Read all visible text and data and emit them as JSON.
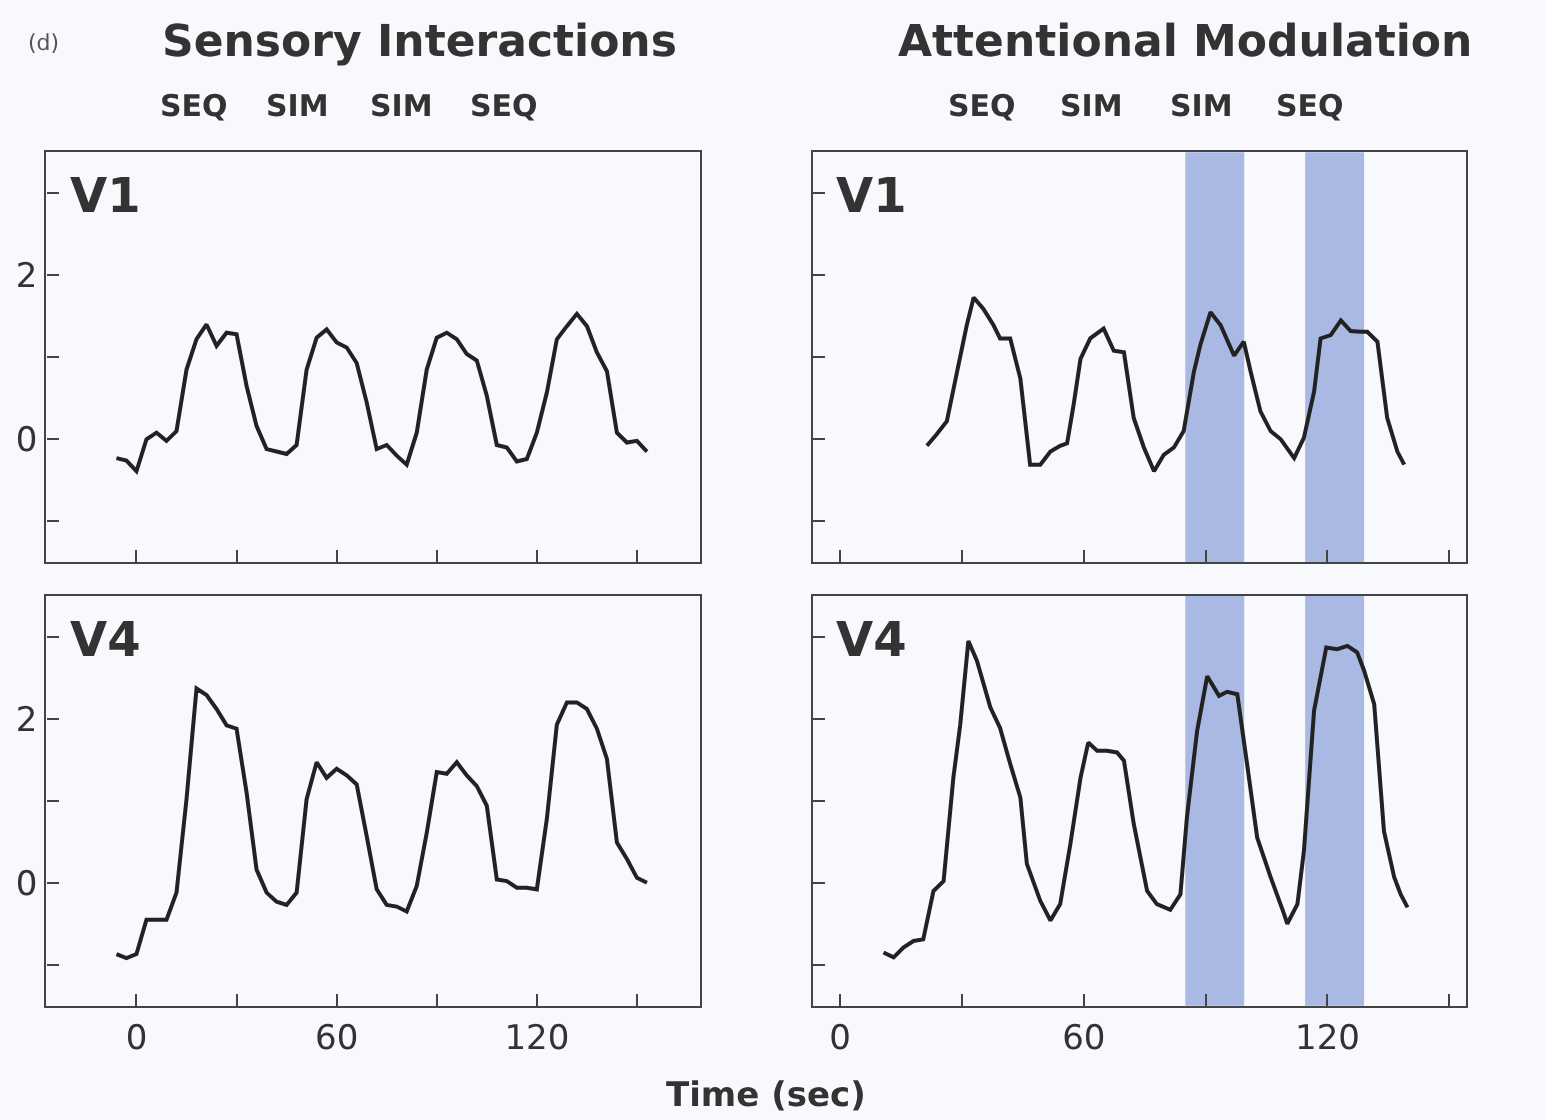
{
  "chart_data": [
    {
      "type": "line",
      "title": "Sensory Interactions",
      "annotations": [
        "V1",
        "SEQ",
        "SIM",
        "SIM",
        "SEQ",
        "(d)"
      ],
      "x": [
        -6,
        -3,
        0,
        3,
        6,
        9,
        12,
        15,
        18,
        21,
        24,
        27,
        30,
        33,
        36,
        39,
        42,
        45,
        48,
        51,
        54,
        57,
        60,
        63,
        66,
        69,
        72,
        75,
        78,
        81,
        84,
        87,
        90,
        93,
        96,
        99,
        102,
        105,
        108,
        111,
        114,
        117,
        120,
        123,
        126,
        129,
        132,
        135,
        138,
        141,
        144,
        147,
        150,
        153
      ],
      "series": [
        {
          "color": "#222222",
          "values": [
            -0.23,
            -0.26,
            -0.39,
            0,
            0.08,
            -0.02,
            0.1,
            0.85,
            1.22,
            1.4,
            1.14,
            1.3,
            1.28,
            0.65,
            0.16,
            -0.12,
            -0.15,
            -0.18,
            -0.07,
            0.85,
            1.24,
            1.34,
            1.18,
            1.12,
            0.93,
            0.45,
            -0.12,
            -0.07,
            -0.2,
            -0.31,
            0.08,
            0.85,
            1.24,
            1.3,
            1.22,
            1.04,
            0.96,
            0.53,
            -0.07,
            -0.1,
            -0.27,
            -0.24,
            0.08,
            0.57,
            1.22,
            1.38,
            1.53,
            1.38,
            1.06,
            0.83,
            0.08,
            -0.04,
            -0.02,
            -0.15
          ]
        }
      ],
      "xlim": [
        -27,
        169
      ],
      "xticks": [
        0,
        {
          "value": 30,
          "label": null
        },
        60,
        {
          "value": 90,
          "label": null
        },
        120,
        {
          "value": 150,
          "label": null
        }
      ],
      "ylim": [
        -1.5,
        3.5
      ],
      "yticks": [
        {
          "value": -1,
          "label": null
        },
        0,
        {
          "value": 1,
          "label": null
        },
        2,
        {
          "value": 3,
          "label": null
        }
      ],
      "tick_labels": "y"
    },
    {
      "type": "line",
      "title": "Attentional Modulation",
      "annotations": [
        "V1",
        "SEQ",
        "SIM",
        "SIM",
        "SEQ"
      ],
      "x": [
        21.4,
        23.8,
        26.3,
        28.8,
        31.2,
        32.9,
        35.3,
        37.8,
        39.4,
        41.9,
        44.4,
        46.8,
        49.3,
        51.8,
        54.2,
        55.9,
        57.5,
        59.2,
        61.6,
        64.9,
        67.4,
        69.9,
        72.3,
        74.8,
        77.3,
        79.7,
        82.2,
        84.6,
        87.1,
        88.7,
        91.2,
        93.7,
        97,
        99.4,
        101.1,
        103.5,
        106,
        108.5,
        111.8,
        114.2,
        116.7,
        118.3,
        120.8,
        123.3,
        125.7,
        128.2,
        129.8,
        132.3,
        134.7,
        137.2,
        138.9
      ],
      "series": [
        {
          "color": "#222222",
          "values": [
            -0.08,
            0.06,
            0.22,
            0.82,
            1.39,
            1.73,
            1.59,
            1.39,
            1.23,
            1.23,
            0.74,
            -0.31,
            -0.31,
            -0.15,
            -0.08,
            -0.05,
            0.42,
            0.98,
            1.23,
            1.35,
            1.08,
            1.06,
            0.26,
            -0.1,
            -0.39,
            -0.19,
            -0.1,
            0.1,
            0.82,
            1.15,
            1.55,
            1.39,
            1.02,
            1.19,
            0.82,
            0.34,
            0.1,
            0,
            -0.23,
            0.02,
            0.58,
            1.23,
            1.27,
            1.45,
            1.32,
            1.31,
            1.31,
            1.19,
            0.26,
            -0.15,
            -0.31
          ]
        }
      ],
      "bands": [
        {
          "axis": "x",
          "from": 85,
          "to": 99.5,
          "color": "#aab9e3"
        },
        {
          "axis": "x",
          "from": 114.5,
          "to": 129,
          "color": "#aab9e3"
        }
      ],
      "xlim": [
        -6.6,
        154
      ],
      "xticks": [
        0,
        {
          "value": 30,
          "label": null
        },
        60,
        {
          "value": 90,
          "label": null
        },
        120,
        {
          "value": 150,
          "label": null
        }
      ],
      "ylim": [
        -1.5,
        3.5
      ],
      "yticks": [
        {
          "value": -1,
          "label": null
        },
        {
          "value": 0,
          "label": null
        },
        {
          "value": 1,
          "label": null
        },
        {
          "value": 2,
          "label": null
        },
        {
          "value": 3,
          "label": null
        }
      ],
      "tick_labels": false
    },
    {
      "type": "line",
      "annotations": [
        "V4"
      ],
      "x": [
        -6,
        -3,
        0,
        3,
        6,
        9,
        12,
        15,
        18,
        21,
        24,
        27,
        30,
        33,
        36,
        39,
        42,
        45,
        48,
        51,
        54,
        57,
        60,
        63,
        66,
        69,
        72,
        75,
        78,
        81,
        84,
        87,
        90,
        93,
        96,
        99,
        102,
        105,
        108,
        111,
        114,
        117,
        120,
        123,
        126,
        129,
        132,
        135,
        138,
        141,
        144,
        147,
        150,
        153
      ],
      "series": [
        {
          "color": "#222222",
          "values": [
            -0.87,
            -0.92,
            -0.87,
            -0.45,
            -0.45,
            -0.45,
            -0.12,
            1.02,
            2.37,
            2.29,
            2.12,
            1.92,
            1.88,
            1.1,
            0.16,
            -0.12,
            -0.23,
            -0.27,
            -0.12,
            1.02,
            1.47,
            1.28,
            1.39,
            1.31,
            1.2,
            0.57,
            -0.08,
            -0.27,
            -0.29,
            -0.35,
            -0.04,
            0.61,
            1.35,
            1.33,
            1.47,
            1.31,
            1.18,
            0.94,
            0.04,
            0.02,
            -0.06,
            -0.06,
            -0.08,
            0.78,
            1.93,
            2.2,
            2.2,
            2.12,
            1.88,
            1.51,
            0.49,
            0.29,
            0.06,
            0
          ]
        }
      ],
      "xlim": [
        -27,
        169
      ],
      "xticks": [
        0,
        {
          "value": 30,
          "label": null
        },
        60,
        {
          "value": 90,
          "label": null
        },
        120,
        {
          "value": 150,
          "label": null
        }
      ],
      "ylim": [
        -1.5,
        3.5
      ],
      "yticks": [
        {
          "value": -1,
          "label": null
        },
        0,
        {
          "value": 1,
          "label": null
        },
        2,
        {
          "value": 3,
          "label": null
        }
      ]
    },
    {
      "type": "line",
      "xlabel": "Time (sec)",
      "annotations": [
        "V4"
      ],
      "x": [
        10.7,
        13.2,
        15.6,
        18.1,
        20.5,
        23,
        25.5,
        27.9,
        29.6,
        31.6,
        33.7,
        37,
        39.4,
        41.9,
        44.4,
        46,
        49.3,
        51.8,
        54.2,
        56.7,
        59.2,
        61.1,
        63.3,
        65.7,
        68.2,
        69.9,
        72.3,
        75.6,
        78,
        81.3,
        83.8,
        85.4,
        87.9,
        90.4,
        93.3,
        95.3,
        97.8,
        100.2,
        102.7,
        106,
        109.3,
        110.1,
        112.6,
        114.2,
        116.7,
        119.7,
        122.4,
        124.9,
        127.3,
        129,
        131.5,
        133.9,
        136.4,
        138,
        139.7
      ],
      "series": [
        {
          "color": "#222222",
          "values": [
            -0.85,
            -0.91,
            -0.79,
            -0.71,
            -0.69,
            -0.1,
            0.02,
            1.28,
            1.93,
            2.95,
            2.71,
            2.14,
            1.89,
            1.45,
            1.04,
            0.23,
            -0.22,
            -0.46,
            -0.26,
            0.47,
            1.28,
            1.71,
            1.61,
            1.61,
            1.59,
            1.49,
            0.72,
            -0.1,
            -0.26,
            -0.33,
            -0.14,
            0.8,
            1.85,
            2.52,
            2.28,
            2.33,
            2.3,
            1.45,
            0.55,
            0.07,
            -0.38,
            -0.5,
            -0.26,
            0.39,
            2.1,
            2.87,
            2.85,
            2.89,
            2.81,
            2.59,
            2.18,
            0.63,
            0.07,
            -0.14,
            -0.3
          ]
        }
      ],
      "bands": [
        {
          "axis": "x",
          "from": 85,
          "to": 99.5,
          "color": "#aab9e3"
        },
        {
          "axis": "x",
          "from": 114.5,
          "to": 129,
          "color": "#aab9e3"
        }
      ],
      "xlim": [
        -6.6,
        154
      ],
      "xticks": [
        0,
        {
          "value": 30,
          "label": null
        },
        60,
        {
          "value": 90,
          "label": null
        },
        120,
        {
          "value": 150,
          "label": null
        }
      ],
      "ylim": [
        -1.5,
        3.5
      ],
      "yticks": [
        {
          "value": -1,
          "label": null
        },
        {
          "value": 0,
          "label": null
        },
        {
          "value": 1,
          "label": null
        },
        {
          "value": 2,
          "label": null
        },
        {
          "value": 3,
          "label": null
        }
      ],
      "tick_labels": "x"
    }
  ]
}
